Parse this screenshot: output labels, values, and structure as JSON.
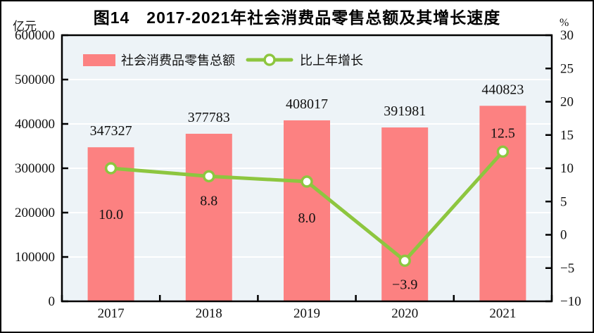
{
  "title": "图14　2017-2021年社会消费品零售总额及其增长速度",
  "axes": {
    "left_unit": "亿元",
    "right_unit": "%",
    "left_tick_labels": [
      "0",
      "100000",
      "200000",
      "300000",
      "400000",
      "500000",
      "600000"
    ],
    "right_tick_labels": [
      "−10",
      "−5",
      "0",
      "5",
      "10",
      "15",
      "20",
      "25",
      "30"
    ]
  },
  "legend": {
    "bar_label": "社会消费品零售总额",
    "line_label": "比上年增长"
  },
  "colors": {
    "bar": "#FC8181",
    "line": "#8DC63F",
    "marker_fill": "#FFFFFF",
    "plot_bg": "#EDF3F7",
    "gridline": "#FFFFFF",
    "axis": "#000000",
    "text": "#111111"
  },
  "chart_data": {
    "type": "bar",
    "subtype": "bar+line combo, dual axis",
    "title": "图14　2017-2021年社会消费品零售总额及其增长速度",
    "categories": [
      "2017",
      "2018",
      "2019",
      "2020",
      "2021"
    ],
    "series": [
      {
        "name": "社会消费品零售总额",
        "type": "bar",
        "axis": "left",
        "unit": "亿元",
        "values": [
          347327,
          377783,
          408017,
          391981,
          440823
        ],
        "labels": [
          "347327",
          "377783",
          "408017",
          "391981",
          "440823"
        ]
      },
      {
        "name": "比上年增长",
        "type": "line",
        "axis": "right",
        "unit": "%",
        "values": [
          10.0,
          8.8,
          8.0,
          -3.9,
          12.5
        ],
        "labels": [
          "10.0",
          "8.8",
          "8.0",
          "−3.9",
          "12.5"
        ]
      }
    ],
    "left_axis": {
      "label": "亿元",
      "min": 0,
      "max": 600000,
      "step": 100000
    },
    "right_axis": {
      "label": "%",
      "min": -10,
      "max": 30,
      "step": 5
    },
    "grid": "horizontal white gridlines every 100000",
    "legend_position": "inside plot, top-left"
  }
}
